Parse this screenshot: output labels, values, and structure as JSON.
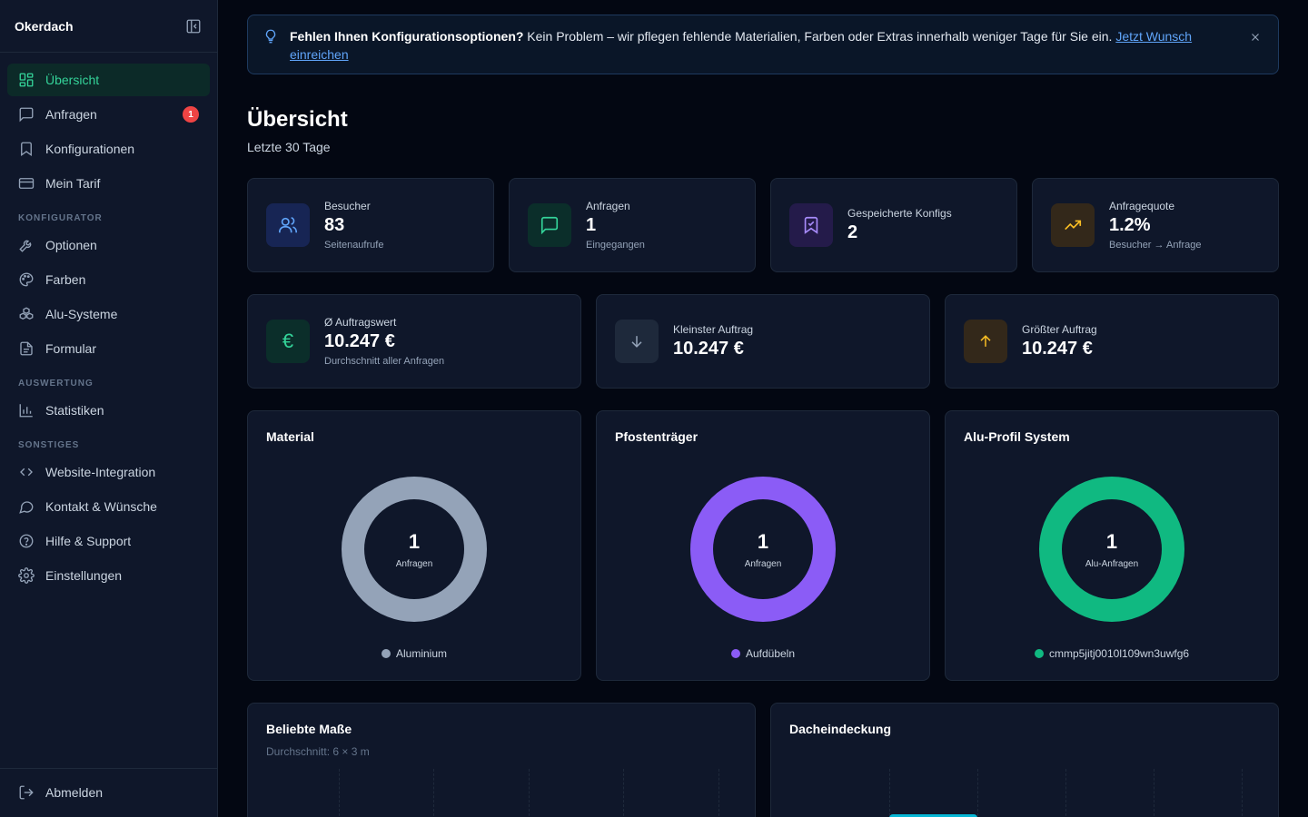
{
  "sidebar": {
    "brand": "Okerdach",
    "items": [
      {
        "label": "Übersicht"
      },
      {
        "label": "Anfragen",
        "badge": "1"
      },
      {
        "label": "Konfigurationen"
      },
      {
        "label": "Mein Tarif"
      }
    ],
    "sections": [
      {
        "label": "KONFIGURATOR",
        "items": [
          {
            "label": "Optionen"
          },
          {
            "label": "Farben"
          },
          {
            "label": "Alu-Systeme"
          },
          {
            "label": "Formular"
          }
        ]
      },
      {
        "label": "AUSWERTUNG",
        "items": [
          {
            "label": "Statistiken"
          }
        ]
      },
      {
        "label": "SONSTIGES",
        "items": [
          {
            "label": "Website-Integration"
          },
          {
            "label": "Kontakt & Wünsche"
          },
          {
            "label": "Hilfe & Support"
          },
          {
            "label": "Einstellungen"
          }
        ]
      }
    ],
    "logout": "Abmelden"
  },
  "banner": {
    "bold": "Fehlen Ihnen Konfigurationsoptionen?",
    "text": " Kein Problem – wir pflegen fehlende Materialien, Farben oder Extras innerhalb weniger Tage für Sie ein. ",
    "link": "Jetzt Wunsch einreichen"
  },
  "page": {
    "title": "Übersicht",
    "subtitle": "Letzte 30 Tage"
  },
  "stats": [
    {
      "label": "Besucher",
      "value": "83",
      "sub": "Seitenaufrufe",
      "color": "#60a5fa",
      "bg": "#172554"
    },
    {
      "label": "Anfragen",
      "value": "1",
      "sub": "Eingegangen",
      "color": "#34d399",
      "bg": "#0b2e2a"
    },
    {
      "label": "Gespeicherte Konfigs",
      "value": "2",
      "sub": "",
      "color": "#a78bfa",
      "bg": "#241b4a"
    },
    {
      "label": "Anfragequote",
      "value": "1.2%",
      "sub": "Besucher → Anfrage",
      "color": "#fbbf24",
      "bg": "#33281a"
    }
  ],
  "orders": [
    {
      "label": "Ø Auftragswert",
      "value": "10.247 €",
      "sub": "Durchschnitt aller Anfragen",
      "icon": "€",
      "color": "#34d399",
      "bg": "#0b2e2a"
    },
    {
      "label": "Kleinster Auftrag",
      "value": "10.247 €",
      "sub": "",
      "color": "#94a3b8",
      "bg": "#1e293b"
    },
    {
      "label": "Größter Auftrag",
      "value": "10.247 €",
      "sub": "",
      "color": "#fbbf24",
      "bg": "#33281a"
    }
  ],
  "donuts": [
    {
      "title": "Material",
      "value": "1",
      "label": "Anfragen",
      "legend": "Aluminium",
      "color": "#94a3b8"
    },
    {
      "title": "Pfostenträger",
      "value": "1",
      "label": "Anfragen",
      "legend": "Aufdübeln",
      "color": "#8b5cf6"
    },
    {
      "title": "Alu-Profil System",
      "value": "1",
      "label": "Alu-Anfragen",
      "legend": "cmmp5jitj0010l109wn3uwfg6",
      "color": "#10b981"
    }
  ],
  "bottom": [
    {
      "title": "Beliebte Maße",
      "sub": "Durchschnitt: 6 × 3 m"
    },
    {
      "title": "Dacheindeckung",
      "sub": ""
    }
  ]
}
